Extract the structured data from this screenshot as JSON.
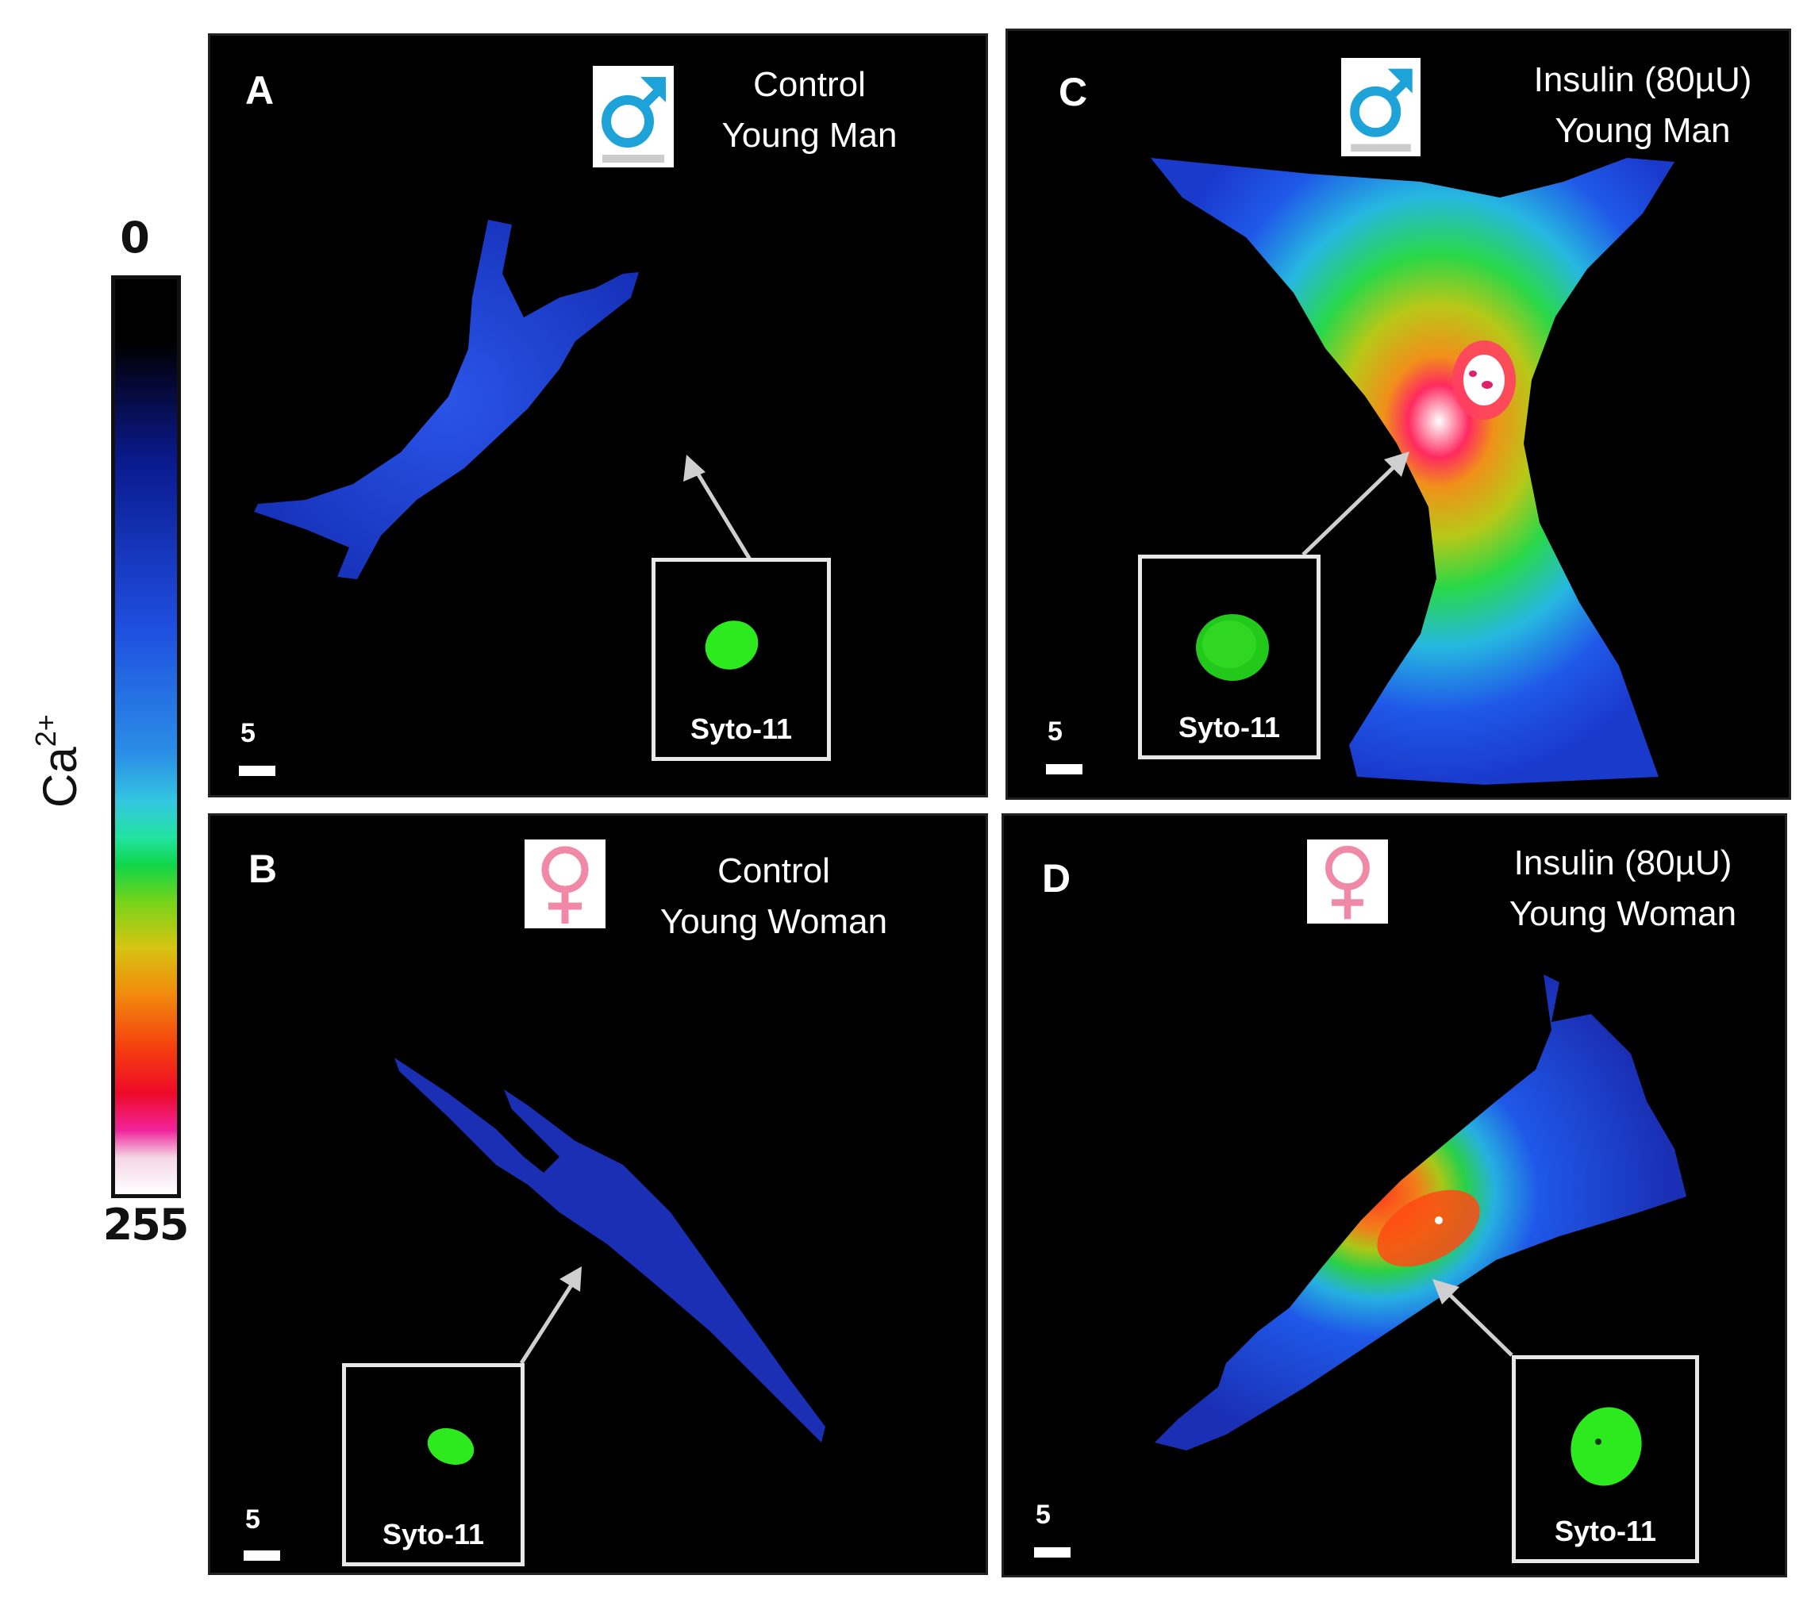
{
  "color_scale": {
    "label_base": "Ca",
    "label_superscript": "2+",
    "min_label": "0",
    "max_label": "255"
  },
  "panels": [
    {
      "letter": "A",
      "line1": "Control",
      "line2": "Young Man",
      "sex_icon": "male-symbol-icon",
      "icon_color": "#1ea3d8",
      "inset_label": "Syto-11",
      "scale_bar_label": "5",
      "cell_color": "#1a3fd6"
    },
    {
      "letter": "B",
      "line1": "Control",
      "line2": "Young Woman",
      "sex_icon": "female-symbol-icon",
      "icon_color": "#f088a8",
      "inset_label": "Syto-11",
      "scale_bar_label": "5",
      "cell_color": "#1a2fb4"
    },
    {
      "letter": "C",
      "line1": "Insulin (80µU)",
      "line2": "Young Man",
      "sex_icon": "male-symbol-icon",
      "icon_color": "#1ea3d8",
      "inset_label": "Syto-11",
      "scale_bar_label": "5",
      "cell_color": "#1a4fe0"
    },
    {
      "letter": "D",
      "line1": "Insulin (80µU)",
      "line2": "Young Woman",
      "sex_icon": "female-symbol-icon",
      "icon_color": "#f088a8",
      "inset_label": "Syto-11",
      "scale_bar_label": "5",
      "cell_color": "#1a3fd6"
    }
  ]
}
